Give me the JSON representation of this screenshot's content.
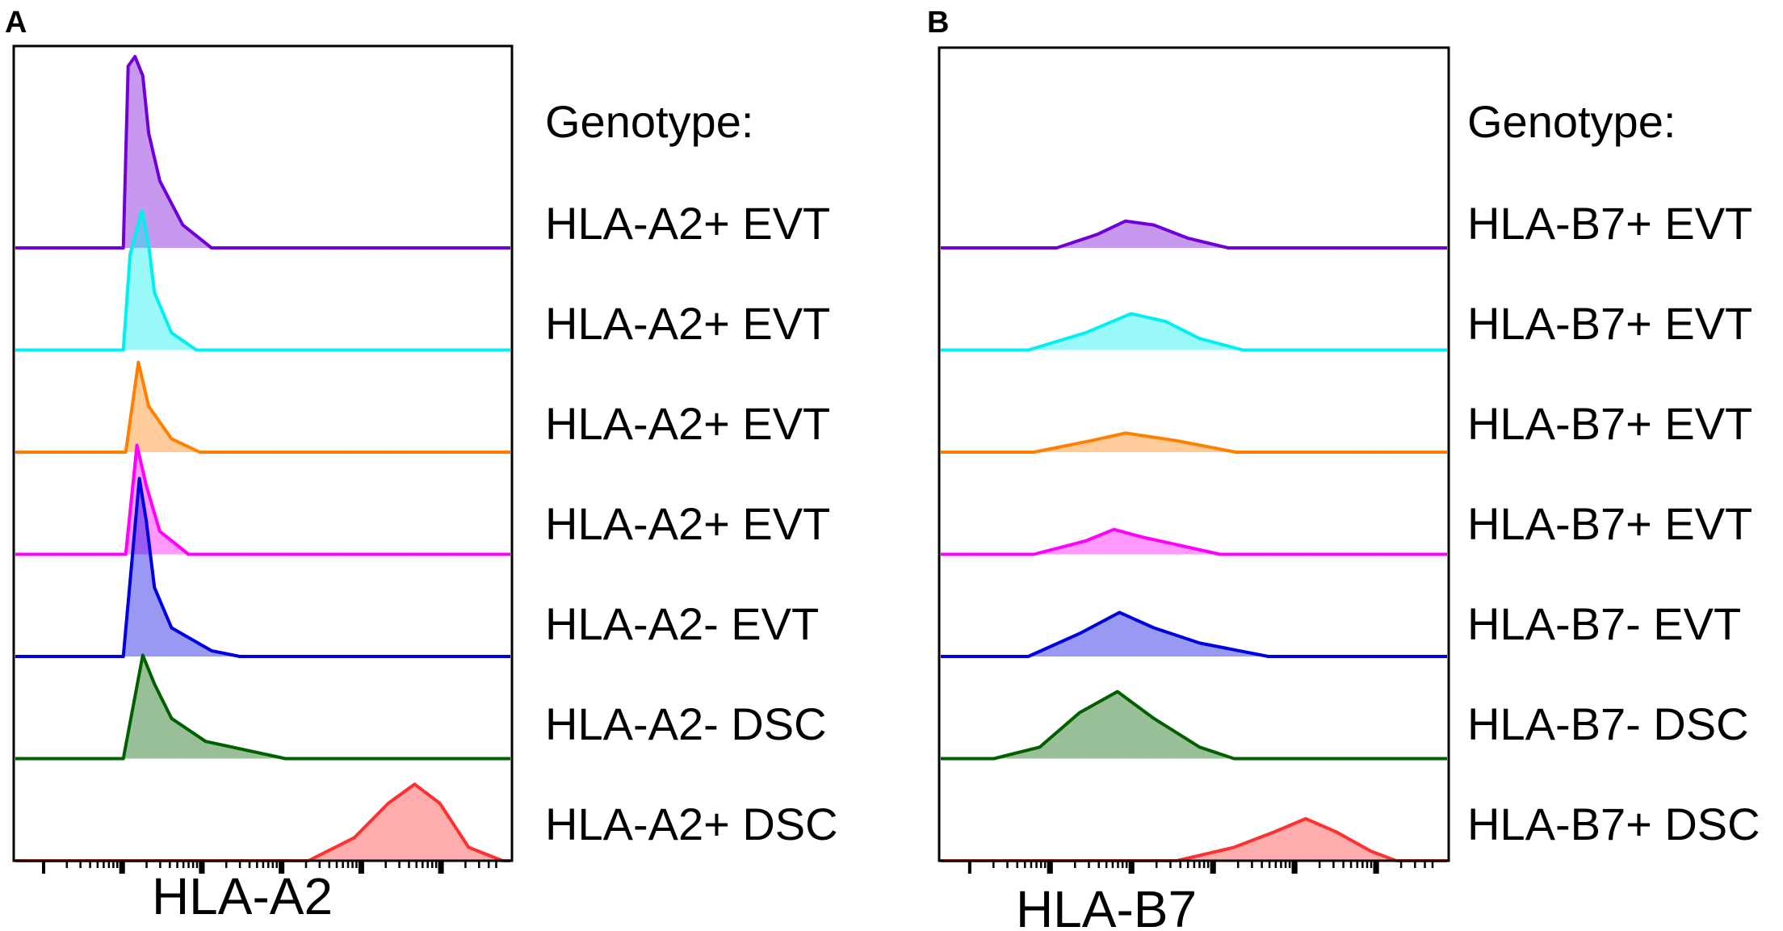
{
  "chart_data": [
    {
      "type": "area",
      "panel_label": "A",
      "xlabel": "HLA-A2",
      "x_scale": "log",
      "x_range_channel": [
        0,
        1023
      ],
      "legend_title": "Genotype:",
      "layout": "stacked offset histograms, labels at right",
      "series": [
        {
          "name": "HLA-A2+ EVT",
          "color": "#7000d8",
          "points": [
            [
              225,
              0
            ],
            [
              235,
              95
            ],
            [
              249,
              100
            ],
            [
              265,
              90
            ],
            [
              277,
              60
            ],
            [
              300,
              35
            ],
            [
              347,
              12
            ],
            [
              406,
              0
            ]
          ]
        },
        {
          "name": "HLA-A2+ EVT",
          "color": "#00f0f0",
          "points": [
            [
              225,
              0
            ],
            [
              239,
              50
            ],
            [
              263,
              73
            ],
            [
              277,
              55
            ],
            [
              289,
              30
            ],
            [
              324,
              9
            ],
            [
              375,
              0
            ]
          ]
        },
        {
          "name": "HLA-A2+ EVT",
          "color": "#ff8000",
          "points": [
            [
              230,
              0
            ],
            [
              256,
              47
            ],
            [
              277,
              24
            ],
            [
              324,
              7
            ],
            [
              382,
              0
            ]
          ]
        },
        {
          "name": "HLA-A2+ EVT",
          "color": "#ff00ff",
          "points": [
            [
              230,
              0
            ],
            [
              253,
              57
            ],
            [
              272,
              36
            ],
            [
              300,
              12
            ],
            [
              359,
              0
            ]
          ]
        },
        {
          "name": "HLA-A2- EVT",
          "color": "#0000e0",
          "points": [
            [
              225,
              0
            ],
            [
              258,
              93
            ],
            [
              272,
              71
            ],
            [
              289,
              36
            ],
            [
              324,
              15
            ],
            [
              406,
              3
            ],
            [
              464,
              0
            ]
          ]
        },
        {
          "name": "HLA-A2- DSC",
          "color": "#006000",
          "points": [
            [
              225,
              0
            ],
            [
              265,
              54
            ],
            [
              289,
              39
            ],
            [
              324,
              21
            ],
            [
              394,
              9
            ],
            [
              558,
              0
            ]
          ]
        },
        {
          "name": "HLA-A2+ DSC",
          "color": "#ff3030",
          "points": [
            [
              605,
              0
            ],
            [
              699,
              12
            ],
            [
              769,
              30
            ],
            [
              823,
              40
            ],
            [
              875,
              30
            ],
            [
              934,
              7
            ],
            [
              1004,
              0
            ]
          ]
        }
      ]
    },
    {
      "type": "area",
      "panel_label": "B",
      "xlabel": "HLA-B7",
      "x_scale": "log",
      "x_range_channel": [
        0,
        1023
      ],
      "legend_title": "Genotype:",
      "layout": "stacked offset histograms, labels at right",
      "series": [
        {
          "name": "HLA-B7+ EVT",
          "color": "#7000d8",
          "points": [
            [
              236,
              0
            ],
            [
              317,
              7
            ],
            [
              374,
              14
            ],
            [
              431,
              12
            ],
            [
              500,
              5
            ],
            [
              580,
              0
            ]
          ]
        },
        {
          "name": "HLA-B7+ EVT",
          "color": "#00f0f0",
          "points": [
            [
              179,
              0
            ],
            [
              294,
              9
            ],
            [
              385,
              19
            ],
            [
              454,
              15
            ],
            [
              523,
              6
            ],
            [
              610,
              0
            ]
          ]
        },
        {
          "name": "HLA-B7+ EVT",
          "color": "#ff8000",
          "points": [
            [
              190,
              0
            ],
            [
              305,
              6
            ],
            [
              374,
              10
            ],
            [
              477,
              6
            ],
            [
              596,
              0
            ]
          ]
        },
        {
          "name": "HLA-B7+ EVT",
          "color": "#ff00ff",
          "points": [
            [
              190,
              0
            ],
            [
              294,
              7
            ],
            [
              351,
              13
            ],
            [
              408,
              9
            ],
            [
              477,
              5
            ],
            [
              564,
              0
            ]
          ]
        },
        {
          "name": "HLA-B7- EVT",
          "color": "#0000e0",
          "points": [
            [
              179,
              0
            ],
            [
              282,
              12
            ],
            [
              362,
              23
            ],
            [
              431,
              15
            ],
            [
              523,
              7
            ],
            [
              661,
              0
            ]
          ]
        },
        {
          "name": "HLA-B7- DSC",
          "color": "#006000",
          "points": [
            [
              110,
              0
            ],
            [
              202,
              6
            ],
            [
              282,
              24
            ],
            [
              358,
              35
            ],
            [
              431,
              21
            ],
            [
              523,
              6
            ],
            [
              592,
              0
            ]
          ]
        },
        {
          "name": "HLA-B7+ DSC",
          "color": "#ff3030",
          "points": [
            [
              477,
              0
            ],
            [
              592,
              7
            ],
            [
              672,
              15
            ],
            [
              736,
              22
            ],
            [
              798,
              15
            ],
            [
              867,
              5
            ],
            [
              918,
              0
            ]
          ]
        }
      ]
    }
  ]
}
